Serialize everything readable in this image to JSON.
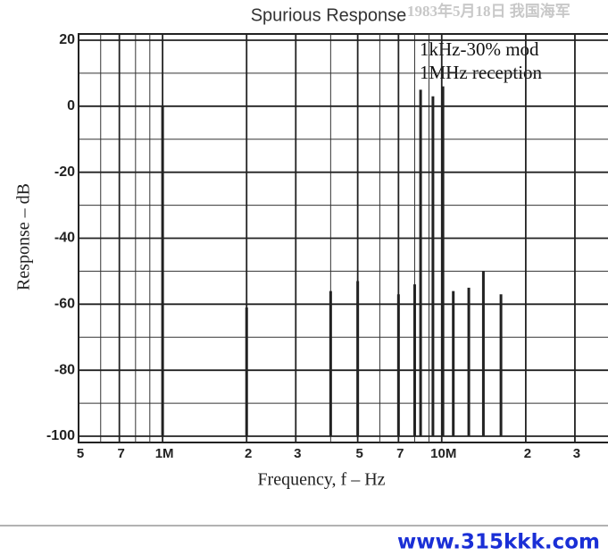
{
  "chart_data": {
    "type": "spike",
    "title": "Spurious Response",
    "annotation": [
      "1kHz-30% mod",
      "1MHz reception"
    ],
    "xlabel": "Frequency, f  –  Hz",
    "ylabel": "Response  –  dB",
    "x": [
      1000000,
      2000000,
      4000000,
      5000000,
      7000000,
      8000000,
      8400000,
      9300000,
      10100000,
      11000000,
      12500000,
      14100000,
      16300000
    ],
    "values": [
      0,
      -61,
      -56,
      -53,
      -57,
      -54,
      5,
      3,
      6,
      -56,
      -55,
      -50,
      -57
    ],
    "color": "#222222",
    "xscale": "log",
    "xlim": [
      500000,
      40000000
    ],
    "ylim": [
      -100,
      20
    ],
    "xticks": [
      {
        "value": 500000,
        "label": "5"
      },
      {
        "value": 700000,
        "label": "7"
      },
      {
        "value": 1000000,
        "label": "1M"
      },
      {
        "value": 2000000,
        "label": "2"
      },
      {
        "value": 3000000,
        "label": "3"
      },
      {
        "value": 5000000,
        "label": "5"
      },
      {
        "value": 7000000,
        "label": "7"
      },
      {
        "value": 10000000,
        "label": "10M"
      },
      {
        "value": 20000000,
        "label": "2"
      },
      {
        "value": 30000000,
        "label": "3"
      }
    ],
    "xminor": [
      600000,
      800000,
      900000,
      4000000,
      6000000,
      8000000,
      9000000,
      40000000
    ],
    "yticks": [
      20,
      0,
      -20,
      -40,
      -60,
      -80,
      -100
    ],
    "yminor": [
      10,
      -10,
      -30,
      -50,
      -70,
      -90
    ],
    "grid": true
  },
  "watermark": "1983年5月18日  我国海军",
  "footer": "www.315kkk.com"
}
